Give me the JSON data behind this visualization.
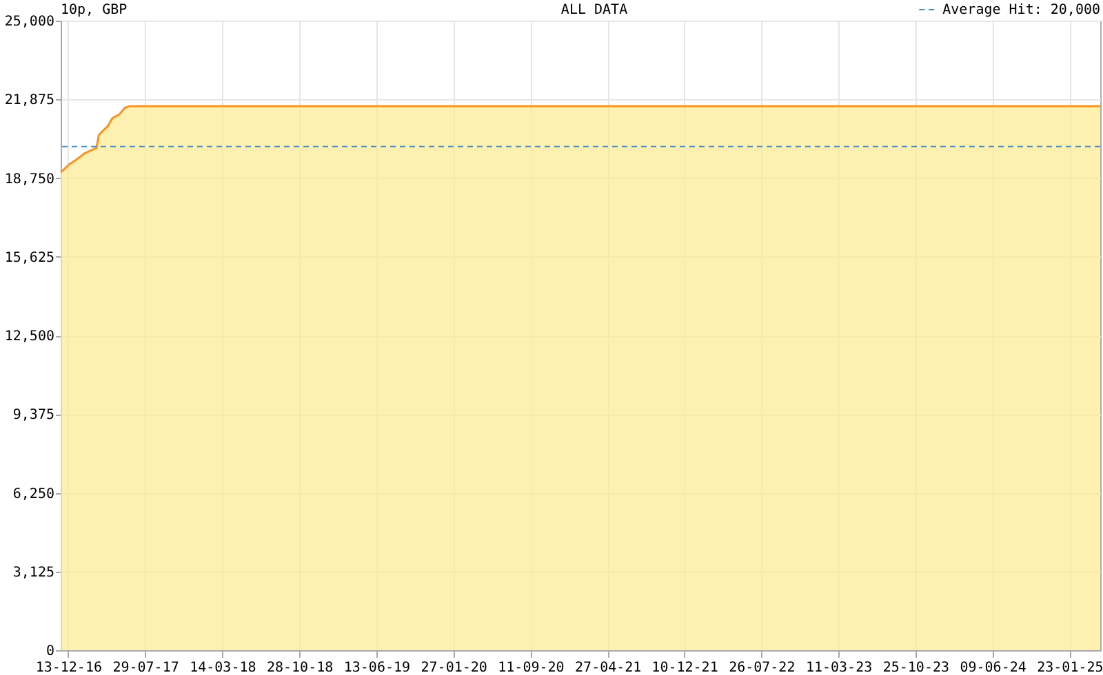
{
  "chart_data": {
    "type": "area",
    "title": "10p, GBP",
    "subtitle": "ALL DATA",
    "x": [
      "2016-11-21",
      "2016-12-02",
      "2016-12-16",
      "2017-01-05",
      "2017-02-01",
      "2017-02-21",
      "2017-03-07",
      "2017-03-14",
      "2017-03-27",
      "2017-04-10",
      "2017-04-23",
      "2017-05-13",
      "2017-05-30",
      "2017-06-12",
      "2025-04-24"
    ],
    "series": [
      {
        "color": "#fde98f",
        "values": [
          18980,
          19110,
          19290,
          19470,
          19740,
          19860,
          19950,
          20460,
          20640,
          20820,
          21130,
          21270,
          21540,
          21600,
          21600
        ]
      }
    ],
    "xlim": [
      "2016-11-21",
      "2025-04-24"
    ],
    "xticks": [
      {
        "value": "2016-12-13",
        "label": "13-12-16"
      },
      {
        "value": "2017-07-29",
        "label": "29-07-17"
      },
      {
        "value": "2018-03-14",
        "label": "14-03-18"
      },
      {
        "value": "2018-10-28",
        "label": "28-10-18"
      },
      {
        "value": "2019-06-13",
        "label": "13-06-19"
      },
      {
        "value": "2020-01-27",
        "label": "27-01-20"
      },
      {
        "value": "2020-09-11",
        "label": "11-09-20"
      },
      {
        "value": "2021-04-27",
        "label": "27-04-21"
      },
      {
        "value": "2021-12-10",
        "label": "10-12-21"
      },
      {
        "value": "2022-07-26",
        "label": "26-07-22"
      },
      {
        "value": "2023-03-11",
        "label": "11-03-23"
      },
      {
        "value": "2023-10-25",
        "label": "25-10-23"
      },
      {
        "value": "2024-06-09",
        "label": "09-06-24"
      },
      {
        "value": "2025-01-23",
        "label": "23-01-25"
      }
    ],
    "ylim": [
      0,
      25000
    ],
    "yticks": [
      0,
      {
        "value": 3125,
        "label": "3,125"
      },
      {
        "value": 6250,
        "label": "6,250"
      },
      {
        "value": 9375,
        "label": "9,375"
      },
      {
        "value": 12500,
        "label": "12,500"
      },
      {
        "value": 15625,
        "label": "15,625"
      },
      {
        "value": 18750,
        "label": "18,750"
      },
      {
        "value": 21875,
        "label": "21,875"
      },
      {
        "value": 25000,
        "label": "25,000"
      }
    ],
    "grid": true,
    "ref_lines": [
      {
        "axis": "y",
        "value": 20000,
        "label": "Average Hit: 20,000",
        "color": "#3d8fcc",
        "line_style": "dashed"
      }
    ]
  }
}
